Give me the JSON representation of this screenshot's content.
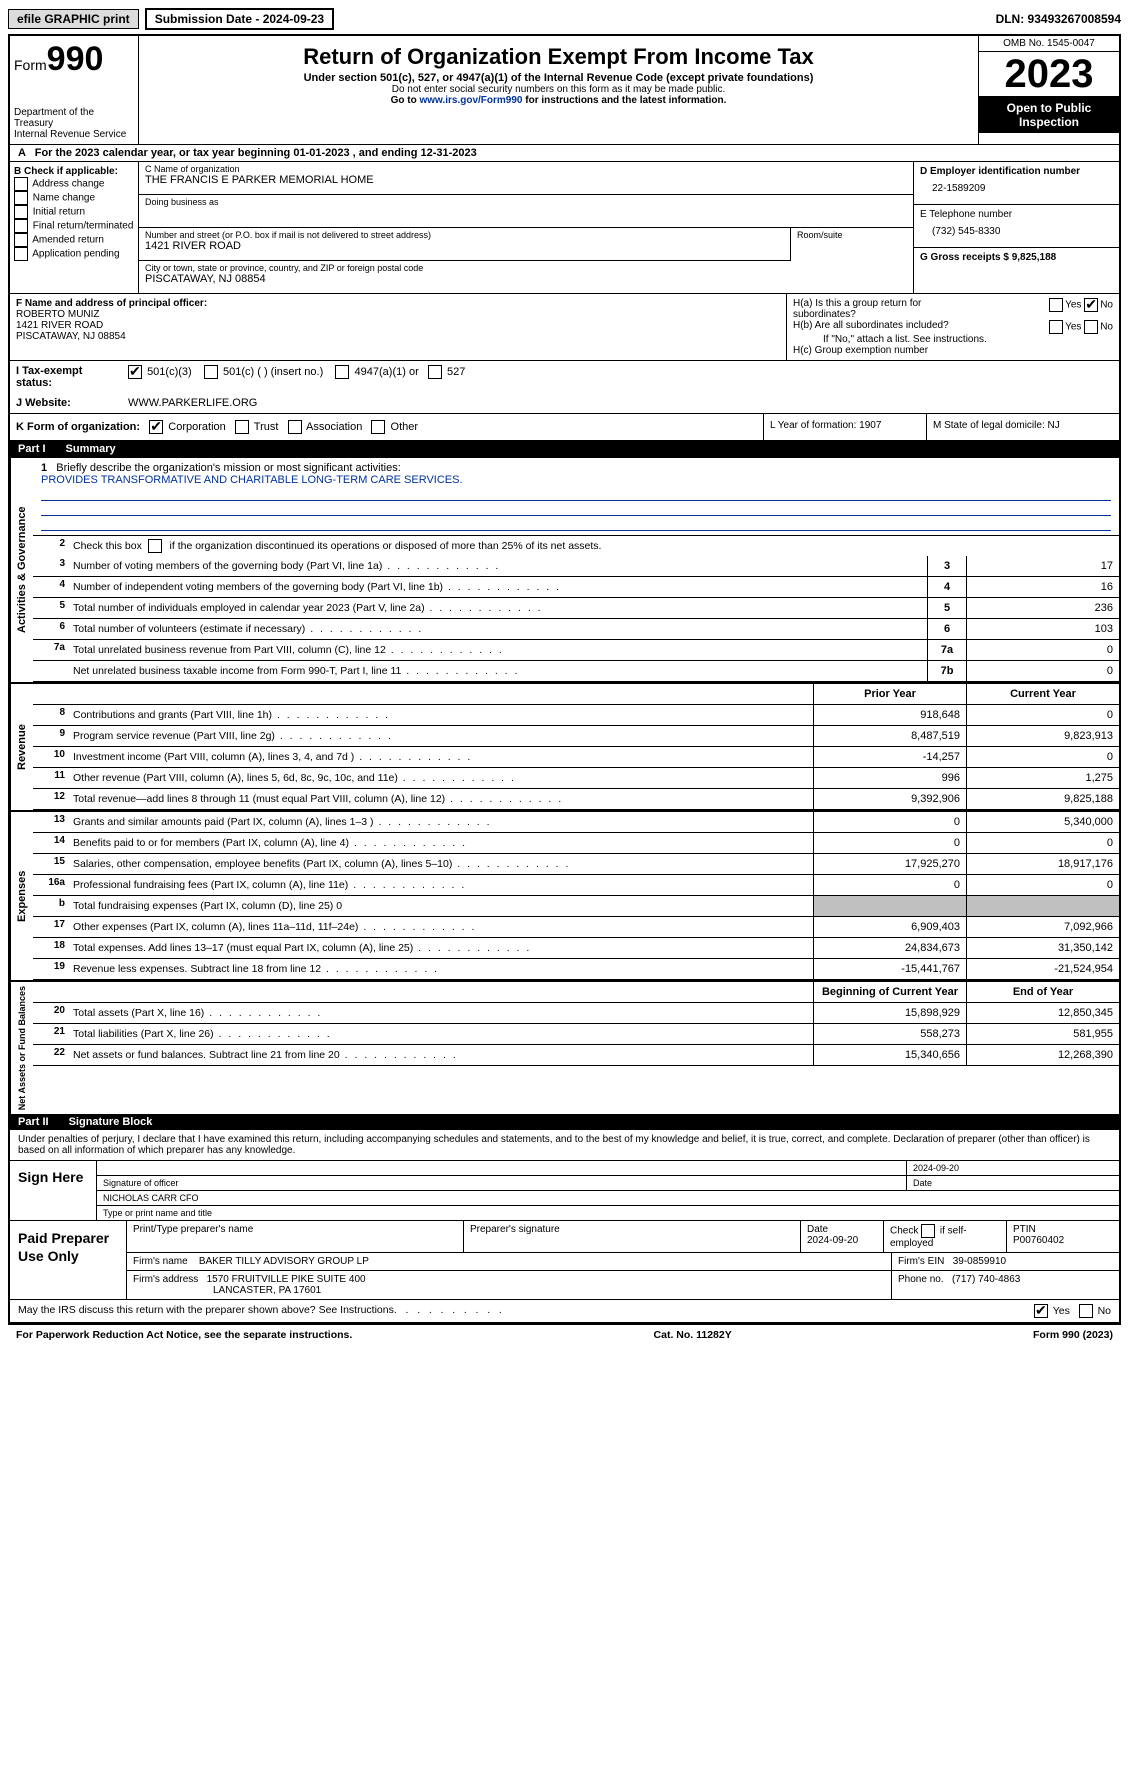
{
  "meta": {
    "efile_label": "efile GRAPHIC print",
    "submission_label": "Submission Date - 2024-09-23",
    "dln_label": "DLN: 93493267008594"
  },
  "header": {
    "form_word": "Form",
    "form_num": "990",
    "dept": "Department of the Treasury\nInternal Revenue Service",
    "title": "Return of Organization Exempt From Income Tax",
    "subtitle": "Under section 501(c), 527, or 4947(a)(1) of the Internal Revenue Code (except private foundations)",
    "note1": "Do not enter social security numbers on this form as it may be made public.",
    "note2_pre": "Go to ",
    "note2_link": "www.irs.gov/Form990",
    "note2_post": " for instructions and the latest information.",
    "omb": "OMB No. 1545-0047",
    "year": "2023",
    "open_public": "Open to Public Inspection"
  },
  "line_a": "For the 2023 calendar year, or tax year beginning 01-01-2023   , and ending 12-31-2023",
  "box_b": {
    "header": "B Check if applicable:",
    "items": [
      "Address change",
      "Name change",
      "Initial return",
      "Final return/terminated",
      "Amended return",
      "Application pending"
    ]
  },
  "box_c": {
    "name_lbl": "C Name of organization",
    "name": "THE FRANCIS E PARKER MEMORIAL HOME",
    "dba_lbl": "Doing business as",
    "dba": "",
    "street_lbl": "Number and street (or P.O. box if mail is not delivered to street address)",
    "street": "1421 RIVER ROAD",
    "room_lbl": "Room/suite",
    "room": "",
    "city_lbl": "City or town, state or province, country, and ZIP or foreign postal code",
    "city": "PISCATAWAY, NJ  08854"
  },
  "box_d": {
    "ein_lbl": "D Employer identification number",
    "ein": "22-1589209",
    "phone_lbl": "E Telephone number",
    "phone": "(732) 545-8330",
    "gross_lbl": "G Gross receipts $ 9,825,188"
  },
  "box_f": {
    "lbl": "F  Name and address of principal officer:",
    "name": "ROBERTO MUNIZ",
    "addr1": "1421 RIVER ROAD",
    "addr2": "PISCATAWAY, NJ  08854"
  },
  "box_h": {
    "ha_lbl": "H(a)  Is this a group return for subordinates?",
    "ha_yes": "Yes",
    "ha_no": "No",
    "hb_lbl": "H(b)  Are all subordinates included?",
    "hb_note": "If \"No,\" attach a list. See instructions.",
    "hc_lbl": "H(c)  Group exemption number"
  },
  "row_i": {
    "lbl": "I    Tax-exempt status:",
    "opt1": "501(c)(3)",
    "opt2": "501(c) (   ) (insert no.)",
    "opt3": "4947(a)(1) or",
    "opt4": "527"
  },
  "row_j": {
    "lbl": "J    Website:",
    "val": "WWW.PARKERLIFE.ORG"
  },
  "row_k": {
    "lbl": "K Form of organization:",
    "opts": [
      "Corporation",
      "Trust",
      "Association",
      "Other"
    ],
    "l_lbl": "L Year of formation: 1907",
    "m_lbl": "M State of legal domicile: NJ"
  },
  "part1": {
    "num": "Part I",
    "title": "Summary"
  },
  "summary": {
    "side1": "Activities & Governance",
    "q1_lbl": "Briefly describe the organization's mission or most significant activities:",
    "q1_val": "PROVIDES TRANSFORMATIVE AND CHARITABLE LONG-TERM CARE SERVICES.",
    "q2": "Check this box      if the organization discontinued its operations or disposed of more than 25% of its net assets.",
    "rows_gov": [
      {
        "n": "3",
        "d": "Number of voting members of the governing body (Part VI, line 1a)",
        "b": "3",
        "v": "17"
      },
      {
        "n": "4",
        "d": "Number of independent voting members of the governing body (Part VI, line 1b)",
        "b": "4",
        "v": "16"
      },
      {
        "n": "5",
        "d": "Total number of individuals employed in calendar year 2023 (Part V, line 2a)",
        "b": "5",
        "v": "236"
      },
      {
        "n": "6",
        "d": "Total number of volunteers (estimate if necessary)",
        "b": "6",
        "v": "103"
      },
      {
        "n": "7a",
        "d": "Total unrelated business revenue from Part VIII, column (C), line 12",
        "b": "7a",
        "v": "0"
      },
      {
        "n": "",
        "d": "Net unrelated business taxable income from Form 990-T, Part I, line 11",
        "b": "7b",
        "v": "0"
      }
    ],
    "side2": "Revenue",
    "hdr_prior": "Prior Year",
    "hdr_curr": "Current Year",
    "rows_rev": [
      {
        "n": "8",
        "d": "Contributions and grants (Part VIII, line 1h)",
        "p": "918,648",
        "c": "0"
      },
      {
        "n": "9",
        "d": "Program service revenue (Part VIII, line 2g)",
        "p": "8,487,519",
        "c": "9,823,913"
      },
      {
        "n": "10",
        "d": "Investment income (Part VIII, column (A), lines 3, 4, and 7d )",
        "p": "-14,257",
        "c": "0"
      },
      {
        "n": "11",
        "d": "Other revenue (Part VIII, column (A), lines 5, 6d, 8c, 9c, 10c, and 11e)",
        "p": "996",
        "c": "1,275"
      },
      {
        "n": "12",
        "d": "Total revenue—add lines 8 through 11 (must equal Part VIII, column (A), line 12)",
        "p": "9,392,906",
        "c": "9,825,188"
      }
    ],
    "side3": "Expenses",
    "rows_exp": [
      {
        "n": "13",
        "d": "Grants and similar amounts paid (Part IX, column (A), lines 1–3 )",
        "p": "0",
        "c": "5,340,000"
      },
      {
        "n": "14",
        "d": "Benefits paid to or for members (Part IX, column (A), line 4)",
        "p": "0",
        "c": "0"
      },
      {
        "n": "15",
        "d": "Salaries, other compensation, employee benefits (Part IX, column (A), lines 5–10)",
        "p": "17,925,270",
        "c": "18,917,176"
      },
      {
        "n": "16a",
        "d": "Professional fundraising fees (Part IX, column (A), line 11e)",
        "p": "0",
        "c": "0"
      },
      {
        "n": "b",
        "d": "Total fundraising expenses (Part IX, column (D), line 25) 0",
        "p": "",
        "c": "",
        "grey": true
      },
      {
        "n": "17",
        "d": "Other expenses (Part IX, column (A), lines 11a–11d, 11f–24e)",
        "p": "6,909,403",
        "c": "7,092,966"
      },
      {
        "n": "18",
        "d": "Total expenses. Add lines 13–17 (must equal Part IX, column (A), line 25)",
        "p": "24,834,673",
        "c": "31,350,142"
      },
      {
        "n": "19",
        "d": "Revenue less expenses. Subtract line 18 from line 12",
        "p": "-15,441,767",
        "c": "-21,524,954"
      }
    ],
    "side4": "Net Assets or Fund Balances",
    "hdr_beg": "Beginning of Current Year",
    "hdr_end": "End of Year",
    "rows_net": [
      {
        "n": "20",
        "d": "Total assets (Part X, line 16)",
        "p": "15,898,929",
        "c": "12,850,345"
      },
      {
        "n": "21",
        "d": "Total liabilities (Part X, line 26)",
        "p": "558,273",
        "c": "581,955"
      },
      {
        "n": "22",
        "d": "Net assets or fund balances. Subtract line 21 from line 20",
        "p": "15,340,656",
        "c": "12,268,390"
      }
    ]
  },
  "part2": {
    "num": "Part II",
    "title": "Signature Block"
  },
  "sig": {
    "intro": "Under penalties of perjury, I declare that I have examined this return, including accompanying schedules and statements, and to the best of my knowledge and belief, it is true, correct, and complete. Declaration of preparer (other than officer) is based on all information of which preparer has any knowledge.",
    "sign_here": "Sign Here",
    "sig_lbl": "Signature of officer",
    "sig_date": "2024-09-20",
    "date_lbl": "Date",
    "name": "NICHOLAS CARR CFO",
    "name_lbl": "Type or print name and title"
  },
  "prep": {
    "lbl": "Paid Preparer Use Only",
    "h1": "Print/Type preparer's name",
    "h2": "Preparer's signature",
    "h3": "Date",
    "h3v": "2024-09-20",
    "h4": "Check       if self-employed",
    "h5": "PTIN",
    "h5v": "P00760402",
    "firm_lbl": "Firm's name",
    "firm": "BAKER TILLY ADVISORY GROUP LP",
    "ein_lbl": "Firm's EIN",
    "ein": "39-0859910",
    "addr_lbl": "Firm's address",
    "addr1": "1570 FRUITVILLE PIKE SUITE 400",
    "addr2": "LANCASTER, PA  17601",
    "phone_lbl": "Phone no.",
    "phone": "(717) 740-4863"
  },
  "discuss": {
    "q": "May the IRS discuss this return with the preparer shown above? See Instructions.",
    "yes": "Yes",
    "no": "No"
  },
  "footer": {
    "left": "For Paperwork Reduction Act Notice, see the separate instructions.",
    "mid": "Cat. No. 11282Y",
    "right_pre": "Form ",
    "right_b": "990",
    "right_post": " (2023)"
  }
}
